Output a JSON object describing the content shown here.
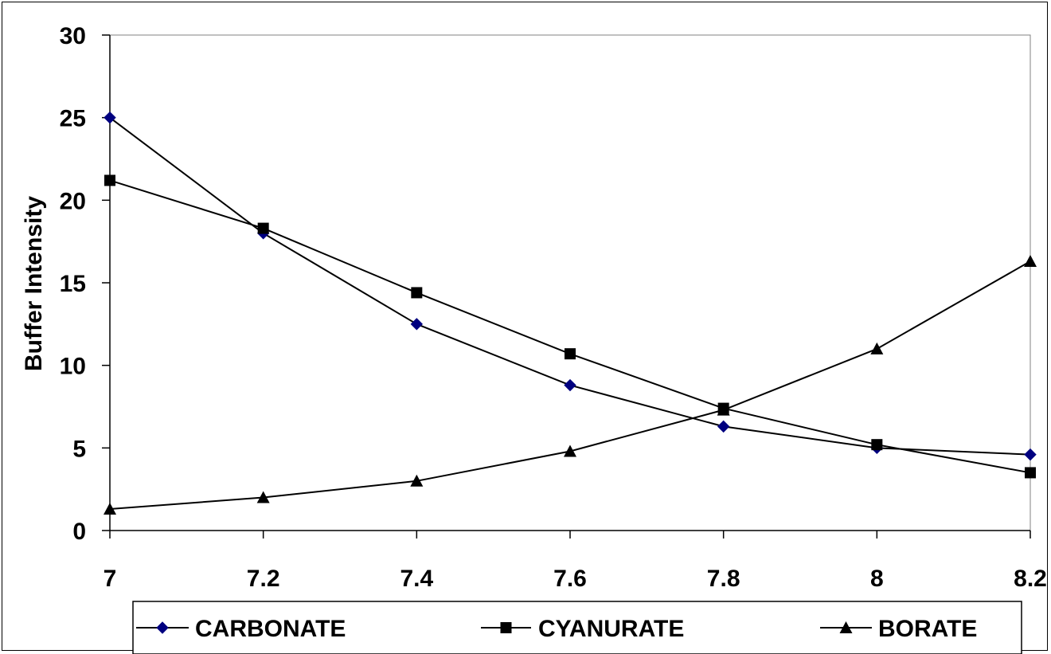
{
  "chart_data": {
    "type": "line",
    "title": "",
    "xlabel": "",
    "ylabel": "Buffer Intensity",
    "x": [
      7,
      7.2,
      7.4,
      7.6,
      7.8,
      8,
      8.2
    ],
    "x_tick_labels": [
      "7",
      "7.2",
      "7.4",
      "7.6",
      "7.8",
      "8",
      "8.2"
    ],
    "y_tick_labels": [
      "0",
      "5",
      "10",
      "15",
      "20",
      "25",
      "30"
    ],
    "xlim": [
      7,
      8.2
    ],
    "ylim": [
      0,
      30
    ],
    "grid": false,
    "legend_position": "bottom",
    "series": [
      {
        "name": "CARBONATE",
        "marker": "diamond",
        "color": "#000080",
        "values": [
          25,
          18,
          12.5,
          8.8,
          6.3,
          5,
          4.6
        ]
      },
      {
        "name": "CYANURATE",
        "marker": "square",
        "color": "#000000",
        "values": [
          21.2,
          18.3,
          14.4,
          10.7,
          7.4,
          5.2,
          3.5
        ]
      },
      {
        "name": "BORATE",
        "marker": "triangle",
        "color": "#000000",
        "values": [
          1.3,
          2,
          3,
          4.8,
          7.3,
          11,
          16.3
        ]
      }
    ]
  }
}
